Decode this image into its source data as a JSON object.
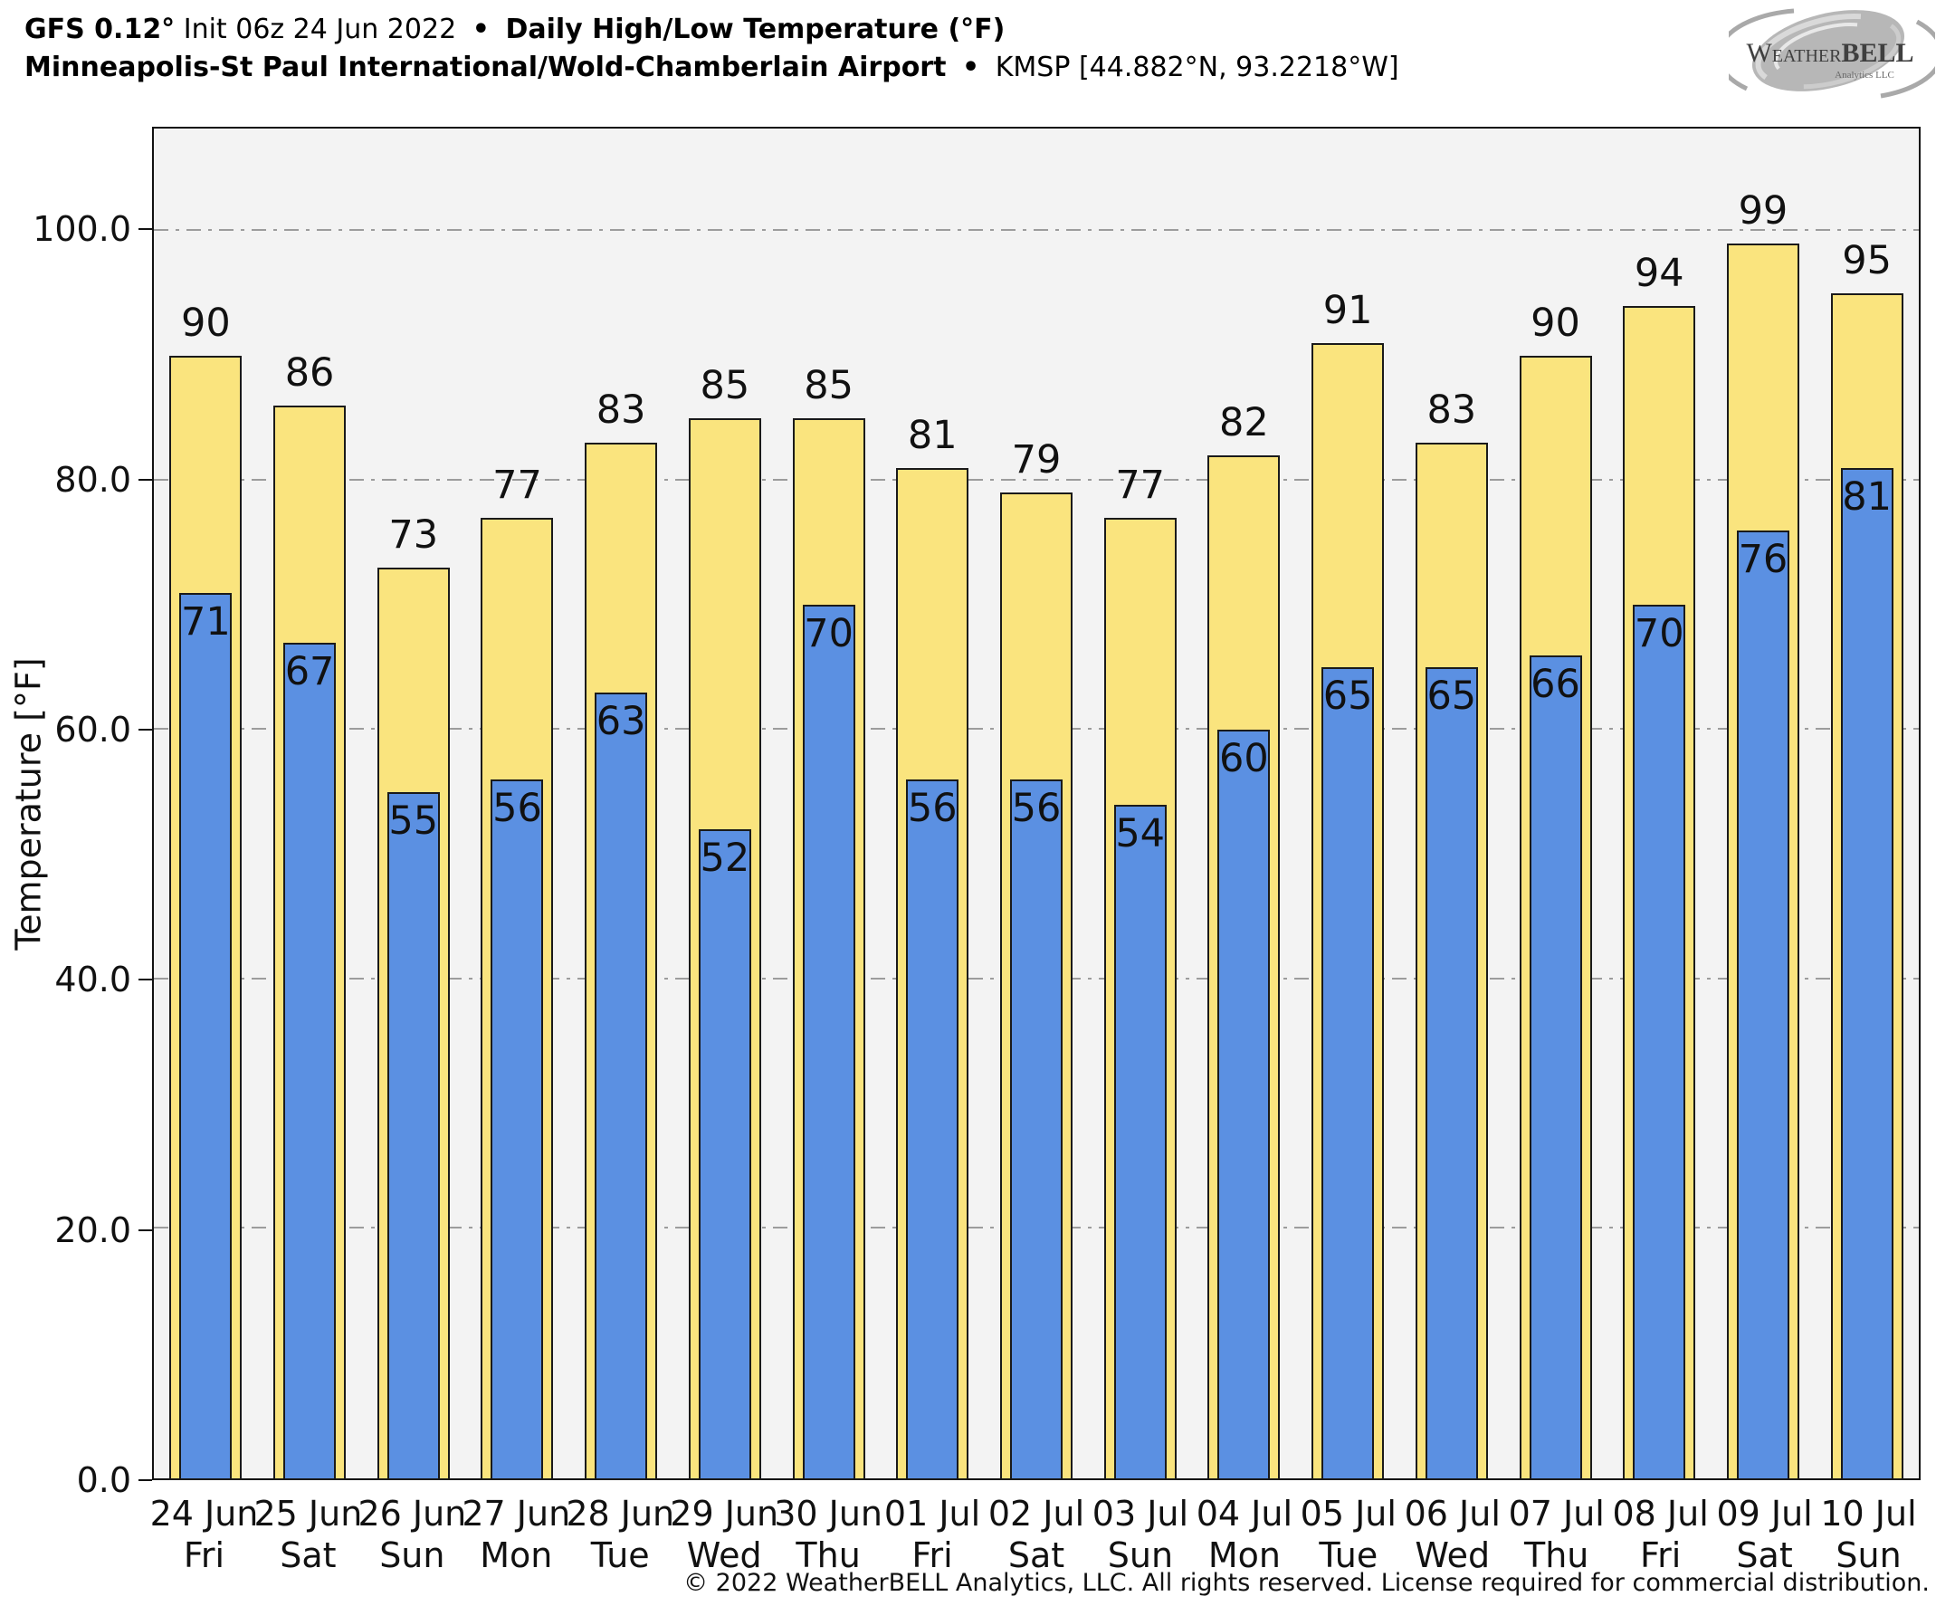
{
  "header": {
    "model": "GFS 0.12°",
    "init": "Init 06z 24 Jun 2022",
    "separator": "•",
    "product_title": "Daily High/Low Temperature (°F)",
    "station": "Minneapolis-St Paul International/Wold-Chamberlain Airport",
    "station_meta": "KMSP [44.882°N, 93.2218°W]"
  },
  "logo": {
    "brand_w": "W",
    "brand_mid": "EATHER",
    "brand_bell": "BELL",
    "sub": "Analytics LLC"
  },
  "footer": "© 2022 WeatherBELL Analytics, LLC. All rights reserved. License required for commercial distribution.",
  "colors": {
    "high_fill": "#FAE47E",
    "low_fill": "#5B90E2",
    "bar_border": "#1A1A1A",
    "plot_bg": "#F3F3F3",
    "grid": "#9C9C9C"
  },
  "chart_data": {
    "type": "bar",
    "title": "Daily High/Low Temperature (°F)",
    "xlabel": "",
    "ylabel": "Temperature [°F]",
    "ylim": [
      0,
      108.2
    ],
    "yticks": [
      0,
      20,
      40,
      60,
      80,
      100
    ],
    "ytick_labels": [
      "0.0",
      "20.0",
      "40.0",
      "60.0",
      "80.0",
      "100.0"
    ],
    "grid": "horizontal dash-dot, behind bars",
    "legend_position": "none",
    "categories": [
      {
        "date": "24 Jun",
        "day": "Fri"
      },
      {
        "date": "25 Jun",
        "day": "Sat"
      },
      {
        "date": "26 Jun",
        "day": "Sun"
      },
      {
        "date": "27 Jun",
        "day": "Mon"
      },
      {
        "date": "28 Jun",
        "day": "Tue"
      },
      {
        "date": "29 Jun",
        "day": "Wed"
      },
      {
        "date": "30 Jun",
        "day": "Thu"
      },
      {
        "date": "01 Jul",
        "day": "Fri"
      },
      {
        "date": "02 Jul",
        "day": "Sat"
      },
      {
        "date": "03 Jul",
        "day": "Sun"
      },
      {
        "date": "04 Jul",
        "day": "Mon"
      },
      {
        "date": "05 Jul",
        "day": "Tue"
      },
      {
        "date": "06 Jul",
        "day": "Wed"
      },
      {
        "date": "07 Jul",
        "day": "Thu"
      },
      {
        "date": "08 Jul",
        "day": "Fri"
      },
      {
        "date": "09 Jul",
        "day": "Sat"
      },
      {
        "date": "10 Jul",
        "day": "Sun"
      }
    ],
    "series": [
      {
        "name": "High",
        "values": [
          90,
          86,
          73,
          77,
          83,
          85,
          85,
          81,
          79,
          77,
          82,
          91,
          83,
          90,
          94,
          99,
          95
        ]
      },
      {
        "name": "Low",
        "values": [
          71,
          67,
          55,
          56,
          63,
          52,
          70,
          56,
          56,
          54,
          60,
          65,
          65,
          66,
          70,
          76,
          81
        ]
      }
    ]
  }
}
